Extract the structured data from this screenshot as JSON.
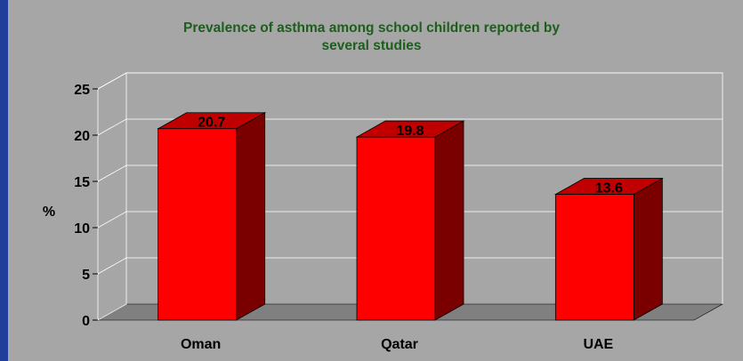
{
  "colors": {
    "frame": "#1f3f9a",
    "background": "#a6a6a6",
    "title": "#1d5e1d",
    "bar_front": "#ff0000",
    "bar_top": "#c00000",
    "bar_side": "#7a0000",
    "floor": "#808080"
  },
  "chart_data": {
    "type": "bar",
    "title": [
      "Prevalence of asthma among school children reported by",
      "several studies"
    ],
    "ylabel": "%",
    "xlabel": "",
    "categories": [
      "Oman",
      "Qatar",
      "UAE"
    ],
    "values": [
      20.7,
      19.8,
      13.6
    ],
    "data_labels": [
      "20.7",
      "19.8",
      "13.6"
    ],
    "yticks": [
      "0",
      "5",
      "10",
      "15",
      "20",
      "25"
    ],
    "ylim": [
      0,
      25
    ],
    "grid": true,
    "legend": "none",
    "style": "3d-column"
  }
}
